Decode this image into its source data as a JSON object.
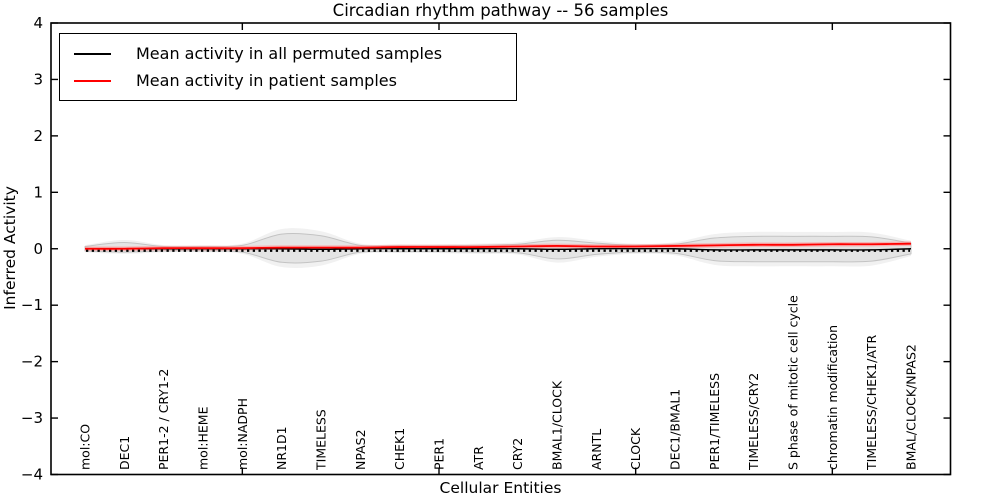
{
  "figure_title": "Circadian rhythm pathway -- 56 samples",
  "axes": {
    "x_label": "Cellular Entities",
    "y_label": "Inferred Activity"
  },
  "legend": {
    "entries": [
      {
        "label": "Mean activity in all permuted samples",
        "color": "#000000"
      },
      {
        "label": "Mean activity in patient samples",
        "color": "#ff0000"
      }
    ]
  },
  "chart_data": {
    "type": "line",
    "title": "Circadian rhythm pathway -- 56 samples",
    "xlabel": "Cellular Entities",
    "ylabel": "Inferred Activity",
    "ylim": [
      -4,
      4
    ],
    "yticks": [
      -4,
      -3,
      -2,
      -1,
      0,
      1,
      2,
      3,
      4
    ],
    "xticks": [
      5,
      10,
      15,
      20
    ],
    "grid": false,
    "legend_position": "upper left",
    "categories": [
      "mol:CO",
      "DEC1",
      "PER1-2 / CRY1-2",
      "mol:HEME",
      "mol:NADPH",
      "NR1D1",
      "TIMELESS",
      "NPAS2",
      "CHEK1",
      "PER1",
      "ATR",
      "CRY2",
      "BMAL1/CLOCK",
      "ARNTL",
      "CLOCK",
      "DEC1/BMAL1",
      "PER1/TIMELESS",
      "TIMELESS/CRY2",
      "S phase of mitotic cell cycle",
      "chromatin modification",
      "TIMELESS/CHEK1/ATR",
      "BMAL/CLOCK/NPAS2"
    ],
    "series": [
      {
        "name": "Mean activity in all permuted samples",
        "color": "#000000",
        "linewidth": 1.4,
        "values": [
          0,
          0,
          0,
          0,
          0,
          0,
          -0.01,
          0,
          0,
          0,
          0,
          0,
          -0.01,
          0,
          0,
          0,
          -0.02,
          -0.02,
          -0.02,
          -0.02,
          -0.02,
          0
        ]
      },
      {
        "name": "Mean activity in patient samples",
        "color": "#ff0000",
        "linewidth": 1.8,
        "values": [
          0,
          0,
          0.01,
          0.01,
          0.01,
          0.02,
          0.02,
          0.02,
          0.03,
          0.03,
          0.03,
          0.04,
          0.05,
          0.04,
          0.04,
          0.05,
          0.06,
          0.07,
          0.07,
          0.08,
          0.08,
          0.09
        ]
      }
    ],
    "bands": [
      {
        "name": "permuted-samples-range",
        "fill": "#e4e4e4",
        "edge": "#c3c3c3",
        "upper": [
          0.04,
          0.11,
          0.04,
          0.04,
          0.06,
          0.26,
          0.23,
          0.06,
          0.05,
          0.05,
          0.06,
          0.08,
          0.15,
          0.1,
          0.06,
          0.08,
          0.19,
          0.22,
          0.22,
          0.22,
          0.21,
          0.1
        ],
        "lower": [
          -0.04,
          -0.06,
          -0.04,
          -0.04,
          -0.06,
          -0.24,
          -0.22,
          -0.06,
          -0.05,
          -0.05,
          -0.06,
          -0.07,
          -0.18,
          -0.1,
          -0.06,
          -0.08,
          -0.21,
          -0.23,
          -0.23,
          -0.23,
          -0.22,
          -0.09
        ]
      },
      {
        "name": "patient-samples-range",
        "fill": "#ff8d8d",
        "edge": "#ff6b6b",
        "upper": [
          0.04,
          0.04,
          0.05,
          0.05,
          0.05,
          0.06,
          0.06,
          0.06,
          0.07,
          0.07,
          0.07,
          0.08,
          0.09,
          0.08,
          0.08,
          0.09,
          0.1,
          0.11,
          0.11,
          0.12,
          0.12,
          0.13
        ],
        "lower": [
          -0.04,
          -0.04,
          -0.03,
          -0.03,
          -0.03,
          -0.02,
          -0.02,
          -0.02,
          -0.01,
          -0.01,
          -0.01,
          0,
          0.01,
          0,
          0,
          0.01,
          0.02,
          0.03,
          0.03,
          0.04,
          0.04,
          0.05
        ]
      }
    ],
    "sample_marks": {
      "description": "dense black dash markers along the zero line",
      "color": "#000000",
      "y": -0.035
    }
  }
}
